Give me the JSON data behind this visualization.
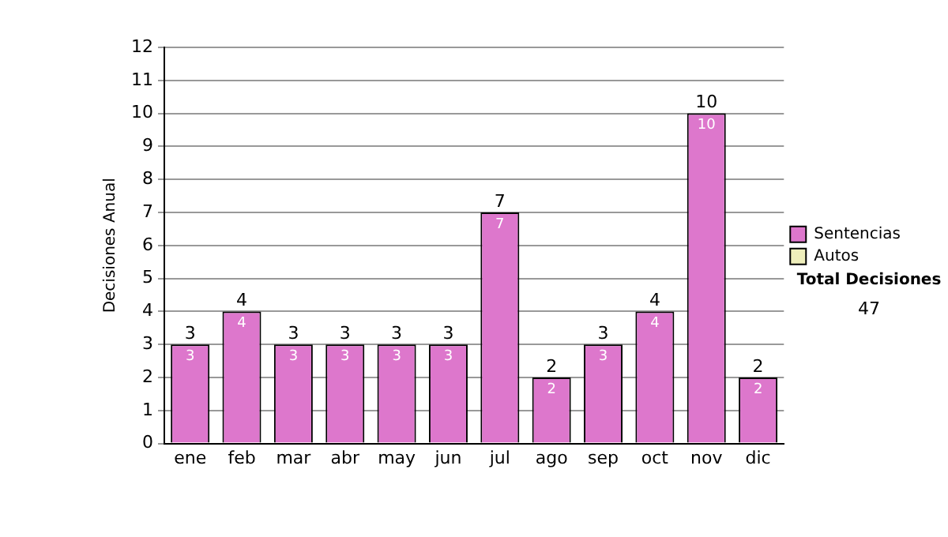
{
  "chart_data": {
    "type": "bar",
    "ylabel": "Decisiones Anual",
    "categories": [
      "ene",
      "feb",
      "mar",
      "abr",
      "may",
      "jun",
      "jul",
      "ago",
      "sep",
      "oct",
      "nov",
      "dic"
    ],
    "series": [
      {
        "name": "Sentencias",
        "color": "#dd77cc",
        "values": [
          3,
          4,
          3,
          3,
          3,
          3,
          7,
          2,
          3,
          4,
          10,
          2
        ],
        "value_labels": [
          "3",
          "4",
          "3",
          "3",
          "3",
          "3",
          "7",
          "2",
          "3",
          "4",
          "10",
          "2"
        ]
      },
      {
        "name": "Autos",
        "color": "#eeeebb",
        "values": [
          0,
          0,
          0,
          0,
          0,
          0,
          0,
          0,
          0,
          0,
          0,
          0
        ]
      }
    ],
    "stacked": true,
    "totals": [
      "3",
      "4",
      "3",
      "3",
      "3",
      "3",
      "7",
      "2",
      "3",
      "4",
      "10",
      "2"
    ],
    "ylim": [
      0,
      12
    ],
    "yticks": [
      0,
      1,
      2,
      3,
      4,
      5,
      6,
      7,
      8,
      9,
      10,
      11,
      12
    ],
    "grid": "y",
    "legend": "right",
    "annotations": [
      "Total Decisiones",
      "47"
    ]
  }
}
